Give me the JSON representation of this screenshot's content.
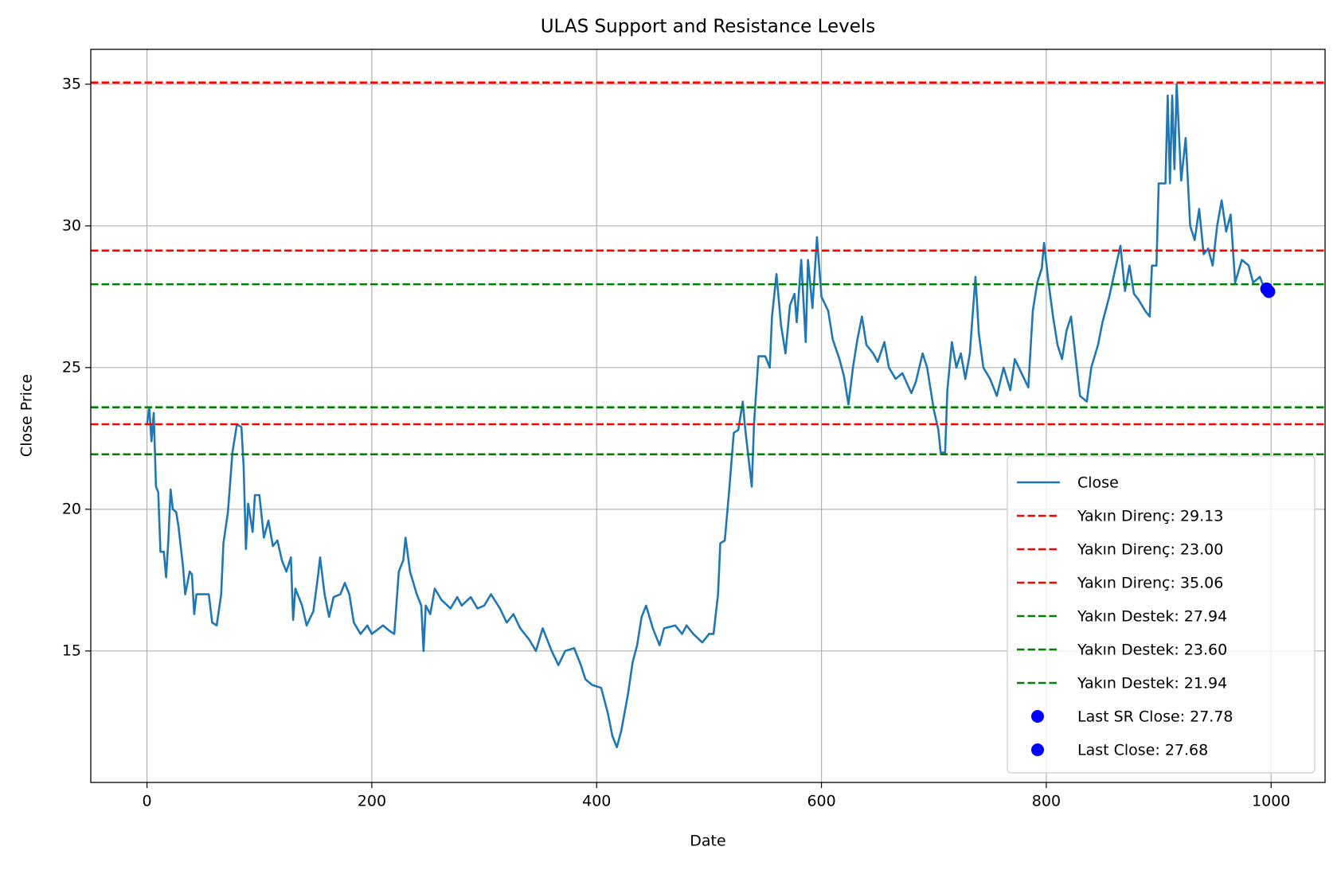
{
  "chart_data": {
    "type": "line",
    "title": "ULAS Support and Resistance Levels",
    "x_label": "Date",
    "y_label": "Close Price",
    "xlim": [
      -50,
      1048
    ],
    "ylim": [
      10.36,
      36.23
    ],
    "xticks": [
      0,
      200,
      400,
      600,
      800,
      1000
    ],
    "yticks": [
      15,
      20,
      25,
      30,
      35
    ],
    "grid": true,
    "legend_position": "lower right",
    "series": [
      {
        "name": "Close",
        "color": "#1f77b4",
        "x": [
          0,
          2,
          4,
          6,
          8,
          10,
          12,
          15,
          17,
          19,
          21,
          23,
          26,
          28,
          32,
          34,
          38,
          40,
          42,
          44,
          55,
          58,
          62,
          66,
          68,
          72,
          76,
          80,
          84,
          86,
          88,
          90,
          94,
          96,
          100,
          104,
          108,
          112,
          116,
          120,
          124,
          128,
          130,
          132,
          138,
          142,
          148,
          152,
          154,
          158,
          162,
          166,
          172,
          176,
          180,
          184,
          190,
          196,
          200,
          210,
          216,
          220,
          224,
          228,
          230,
          234,
          240,
          244,
          246,
          248,
          252,
          256,
          262,
          270,
          276,
          280,
          288,
          294,
          300,
          306,
          314,
          320,
          326,
          332,
          340,
          346,
          352,
          360,
          366,
          372,
          380,
          386,
          390,
          396,
          404,
          410,
          414,
          418,
          422,
          428,
          432,
          436,
          440,
          444,
          450,
          456,
          460,
          470,
          476,
          480,
          486,
          494,
          500,
          504,
          508,
          510,
          514,
          518,
          522,
          526,
          530,
          532,
          536,
          538,
          540,
          544,
          550,
          554,
          556,
          560,
          564,
          568,
          572,
          576,
          578,
          582,
          586,
          588,
          592,
          596,
          600,
          606,
          610,
          616,
          620,
          624,
          628,
          632,
          636,
          640,
          646,
          650,
          656,
          660,
          666,
          672,
          680,
          684,
          690,
          694,
          700,
          704,
          706,
          710,
          712,
          716,
          720,
          724,
          728,
          732,
          734,
          737,
          740,
          744,
          750,
          756,
          762,
          768,
          772,
          778,
          784,
          788,
          792,
          796,
          798,
          802,
          806,
          810,
          814,
          818,
          822,
          826,
          830,
          836,
          840,
          846,
          850,
          856,
          862,
          866,
          870,
          874,
          878,
          882,
          888,
          892,
          894,
          898,
          900,
          906,
          908,
          910,
          912,
          914,
          916,
          920,
          924,
          928,
          932,
          936,
          940,
          944,
          948,
          952,
          956,
          960,
          964,
          968,
          974,
          980,
          984,
          990,
          994,
          998
        ],
        "values": [
          23.0,
          23.6,
          22.4,
          23.4,
          20.8,
          20.6,
          18.5,
          18.5,
          17.6,
          18.9,
          20.7,
          20.0,
          19.9,
          19.4,
          18.0,
          17.0,
          17.8,
          17.7,
          16.3,
          17.0,
          17.0,
          16.0,
          15.9,
          17.0,
          18.8,
          19.9,
          22.0,
          23.0,
          22.9,
          21.5,
          18.6,
          20.2,
          19.2,
          20.5,
          20.5,
          19.0,
          19.6,
          18.7,
          18.9,
          18.2,
          17.8,
          18.3,
          16.1,
          17.2,
          16.6,
          15.9,
          16.4,
          17.6,
          18.3,
          17.0,
          16.2,
          16.9,
          17.0,
          17.4,
          17.0,
          16.0,
          15.6,
          15.9,
          15.6,
          15.9,
          15.7,
          15.6,
          17.8,
          18.2,
          19.0,
          17.8,
          17.0,
          16.6,
          15.0,
          16.6,
          16.3,
          17.2,
          16.8,
          16.5,
          16.9,
          16.6,
          16.9,
          16.5,
          16.6,
          17.0,
          16.5,
          16.0,
          16.3,
          15.8,
          15.4,
          15.0,
          15.8,
          15.0,
          14.5,
          15.0,
          15.1,
          14.5,
          14.0,
          13.8,
          13.7,
          12.8,
          12.0,
          11.6,
          12.2,
          13.5,
          14.6,
          15.2,
          16.2,
          16.6,
          15.8,
          15.2,
          15.8,
          15.9,
          15.6,
          15.9,
          15.6,
          15.3,
          15.6,
          15.6,
          17.0,
          18.8,
          18.9,
          20.7,
          22.7,
          22.8,
          23.8,
          22.9,
          21.5,
          20.8,
          23.0,
          25.4,
          25.4,
          25.0,
          26.8,
          28.3,
          26.5,
          25.5,
          27.2,
          27.6,
          26.6,
          28.8,
          25.9,
          28.8,
          27.1,
          29.6,
          27.5,
          27.0,
          26.0,
          25.3,
          24.7,
          23.7,
          25.0,
          26.0,
          26.8,
          25.8,
          25.5,
          25.2,
          25.9,
          25.0,
          24.6,
          24.8,
          24.1,
          24.5,
          25.5,
          25.0,
          23.5,
          22.8,
          22.0,
          22.0,
          24.2,
          25.9,
          25.0,
          25.5,
          24.6,
          25.5,
          26.6,
          28.2,
          26.2,
          25.0,
          24.6,
          24.0,
          25.0,
          24.2,
          25.3,
          24.8,
          24.3,
          27.0,
          28.0,
          28.5,
          29.4,
          28.0,
          26.8,
          25.8,
          25.3,
          26.3,
          26.8,
          25.4,
          24.0,
          23.8,
          25.0,
          25.8,
          26.6,
          27.5,
          28.6,
          29.3,
          27.7,
          28.6,
          27.6,
          27.4,
          27.0,
          26.8,
          28.6,
          28.6,
          31.5,
          31.5,
          34.6,
          31.5,
          34.6,
          32.0,
          35.0,
          31.6,
          33.1,
          30.0,
          29.5,
          30.6,
          29.0,
          29.2,
          28.6,
          30.0,
          30.9,
          29.8,
          30.4,
          28.0,
          28.8,
          28.6,
          28.0,
          28.2,
          27.8,
          27.7
        ]
      }
    ],
    "hlines": [
      {
        "name": "Yakın Direnç: 29.13",
        "value": 29.13,
        "color": "#ff0000"
      },
      {
        "name": "Yakın Direnç: 23.00",
        "value": 23.0,
        "color": "#ff0000"
      },
      {
        "name": "Yakın Direnç: 35.06",
        "value": 35.06,
        "color": "#ff0000"
      },
      {
        "name": "Yakın Destek: 27.94",
        "value": 27.94,
        "color": "#008000"
      },
      {
        "name": "Yakın Destek: 23.60",
        "value": 23.6,
        "color": "#008000"
      },
      {
        "name": "Yakın Destek: 21.94",
        "value": 21.94,
        "color": "#008000"
      }
    ],
    "points": [
      {
        "name": "Last SR Close: 27.78",
        "x": 996,
        "value": 27.78,
        "color": "#0000ff"
      },
      {
        "name": "Last Close: 27.68",
        "x": 998,
        "value": 27.68,
        "color": "#0000ff"
      }
    ]
  }
}
